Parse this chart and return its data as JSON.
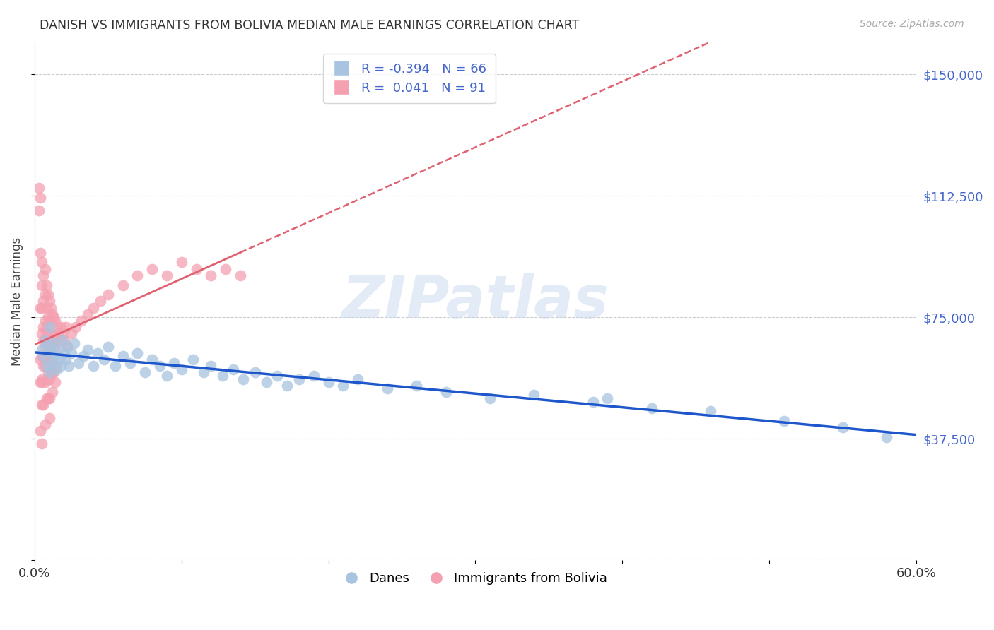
{
  "title": "DANISH VS IMMIGRANTS FROM BOLIVIA MEDIAN MALE EARNINGS CORRELATION CHART",
  "source": "Source: ZipAtlas.com",
  "ylabel": "Median Male Earnings",
  "xlim": [
    0.0,
    0.6
  ],
  "ylim": [
    0,
    160000
  ],
  "yticks": [
    0,
    37500,
    75000,
    112500,
    150000
  ],
  "ytick_labels": [
    "",
    "$37,500",
    "$75,000",
    "$112,500",
    "$150,000"
  ],
  "blue_R": -0.394,
  "blue_N": 66,
  "pink_R": 0.041,
  "pink_N": 91,
  "blue_label": "Danes",
  "pink_label": "Immigrants from Bolivia",
  "blue_color": "#A8C4E0",
  "pink_color": "#F4A0B0",
  "blue_line_color": "#1E56CC",
  "pink_line_color": "#E06070",
  "legend_text_color": "#4466CC",
  "watermark": "ZIPatlas",
  "blue_scatter_x": [
    0.005,
    0.006,
    0.007,
    0.008,
    0.009,
    0.01,
    0.01,
    0.011,
    0.012,
    0.013,
    0.014,
    0.015,
    0.016,
    0.017,
    0.018,
    0.019,
    0.02,
    0.021,
    0.022,
    0.023,
    0.025,
    0.027,
    0.03,
    0.033,
    0.036,
    0.04,
    0.043,
    0.047,
    0.05,
    0.055,
    0.06,
    0.065,
    0.07,
    0.075,
    0.08,
    0.085,
    0.09,
    0.095,
    0.1,
    0.108,
    0.115,
    0.12,
    0.128,
    0.135,
    0.142,
    0.15,
    0.158,
    0.165,
    0.172,
    0.18,
    0.19,
    0.2,
    0.21,
    0.22,
    0.24,
    0.26,
    0.28,
    0.31,
    0.34,
    0.38,
    0.42,
    0.46,
    0.51,
    0.55,
    0.39,
    0.58
  ],
  "blue_scatter_y": [
    65000,
    63000,
    68000,
    60000,
    66000,
    72000,
    58000,
    64000,
    61000,
    67000,
    63000,
    59000,
    65000,
    62000,
    60000,
    68000,
    64000,
    62000,
    66000,
    60000,
    64000,
    67000,
    61000,
    63000,
    65000,
    60000,
    64000,
    62000,
    66000,
    60000,
    63000,
    61000,
    64000,
    58000,
    62000,
    60000,
    57000,
    61000,
    59000,
    62000,
    58000,
    60000,
    57000,
    59000,
    56000,
    58000,
    55000,
    57000,
    54000,
    56000,
    57000,
    55000,
    54000,
    56000,
    53000,
    54000,
    52000,
    50000,
    51000,
    49000,
    47000,
    46000,
    43000,
    41000,
    50000,
    38000
  ],
  "pink_scatter_x": [
    0.003,
    0.003,
    0.004,
    0.004,
    0.004,
    0.004,
    0.005,
    0.005,
    0.005,
    0.005,
    0.005,
    0.005,
    0.005,
    0.006,
    0.006,
    0.006,
    0.006,
    0.007,
    0.007,
    0.007,
    0.007,
    0.007,
    0.008,
    0.008,
    0.008,
    0.008,
    0.008,
    0.009,
    0.009,
    0.009,
    0.009,
    0.01,
    0.01,
    0.01,
    0.01,
    0.01,
    0.01,
    0.01,
    0.011,
    0.011,
    0.011,
    0.012,
    0.012,
    0.012,
    0.013,
    0.013,
    0.013,
    0.014,
    0.014,
    0.014,
    0.015,
    0.015,
    0.016,
    0.017,
    0.018,
    0.019,
    0.02,
    0.021,
    0.022,
    0.025,
    0.028,
    0.032,
    0.036,
    0.04,
    0.045,
    0.05,
    0.06,
    0.07,
    0.08,
    0.09,
    0.1,
    0.11,
    0.12,
    0.13,
    0.14,
    0.004,
    0.005,
    0.006,
    0.007,
    0.008,
    0.009,
    0.01,
    0.011,
    0.012,
    0.004,
    0.005,
    0.006,
    0.007,
    0.008,
    0.009,
    0.01
  ],
  "pink_scatter_y": [
    115000,
    108000,
    112000,
    95000,
    78000,
    55000,
    92000,
    85000,
    78000,
    70000,
    63000,
    56000,
    48000,
    88000,
    80000,
    72000,
    60000,
    90000,
    82000,
    74000,
    66000,
    55000,
    85000,
    78000,
    70000,
    62000,
    50000,
    82000,
    75000,
    68000,
    58000,
    80000,
    74000,
    68000,
    62000,
    56000,
    50000,
    44000,
    78000,
    70000,
    60000,
    76000,
    68000,
    58000,
    75000,
    68000,
    58000,
    74000,
    66000,
    55000,
    72000,
    60000,
    70000,
    68000,
    72000,
    70000,
    68000,
    72000,
    66000,
    70000,
    72000,
    74000,
    76000,
    78000,
    80000,
    82000,
    85000,
    88000,
    90000,
    88000,
    92000,
    90000,
    88000,
    90000,
    88000,
    40000,
    36000,
    48000,
    42000,
    56000,
    50000,
    65000,
    58000,
    52000,
    62000,
    55000,
    68000,
    60000,
    72000,
    64000,
    70000
  ]
}
